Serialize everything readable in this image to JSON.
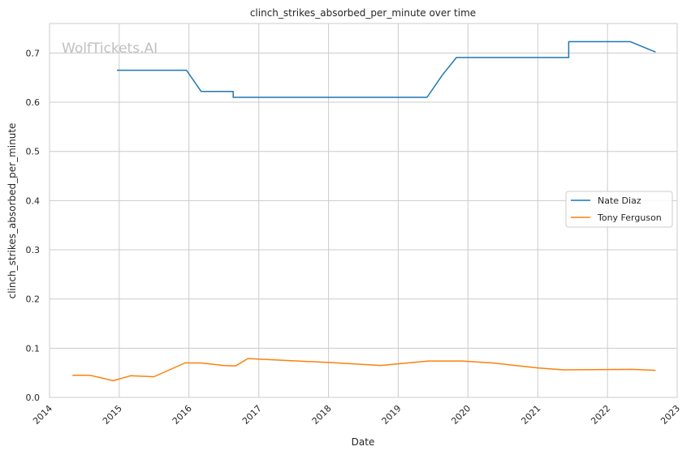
{
  "chart_data": {
    "type": "line",
    "title": "clinch_strikes_absorbed_per_minute over time",
    "xlabel": "Date",
    "ylabel": "clinch_strikes_absorbed_per_minute",
    "watermark": "WolfTickets.AI",
    "xlim": [
      "2014-01-01",
      "2023-01-01"
    ],
    "ylim": [
      0,
      0.76
    ],
    "x_ticks": [
      "2014",
      "2015",
      "2016",
      "2017",
      "2018",
      "2019",
      "2020",
      "2021",
      "2022",
      "2023"
    ],
    "y_ticks": [
      "0.0",
      "0.1",
      "0.2",
      "0.3",
      "0.4",
      "0.5",
      "0.6",
      "0.7"
    ],
    "grid": true,
    "legend_position": "center-right",
    "series": [
      {
        "name": "Nate Diaz",
        "color": "#1f77b4",
        "points": [
          [
            "2014-12-20",
            0.665
          ],
          [
            "2015-12-19",
            0.665
          ],
          [
            "2016-03-05",
            0.622
          ],
          [
            "2016-08-20",
            0.622
          ],
          [
            "2016-08-20",
            0.61
          ],
          [
            "2019-06-01",
            0.61
          ],
          [
            "2019-08-20",
            0.655
          ],
          [
            "2019-11-02",
            0.691
          ],
          [
            "2021-06-12",
            0.691
          ],
          [
            "2021-06-12",
            0.723
          ],
          [
            "2022-05-01",
            0.723
          ],
          [
            "2022-09-10",
            0.702
          ]
        ]
      },
      {
        "name": "Tony Ferguson",
        "color": "#ff7f0e",
        "points": [
          [
            "2014-05-01",
            0.045
          ],
          [
            "2014-08-01",
            0.045
          ],
          [
            "2014-12-01",
            0.034
          ],
          [
            "2015-03-01",
            0.044
          ],
          [
            "2015-07-01",
            0.042
          ],
          [
            "2015-12-12",
            0.07
          ],
          [
            "2016-03-01",
            0.07
          ],
          [
            "2016-07-01",
            0.065
          ],
          [
            "2016-09-01",
            0.064
          ],
          [
            "2016-11-05",
            0.079
          ],
          [
            "2017-06-01",
            0.075
          ],
          [
            "2018-01-01",
            0.071
          ],
          [
            "2018-10-01",
            0.065
          ],
          [
            "2019-06-08",
            0.074
          ],
          [
            "2019-12-01",
            0.074
          ],
          [
            "2020-05-09",
            0.07
          ],
          [
            "2021-01-01",
            0.06
          ],
          [
            "2021-05-15",
            0.056
          ],
          [
            "2022-05-07",
            0.057
          ],
          [
            "2022-09-10",
            0.055
          ]
        ]
      }
    ]
  }
}
